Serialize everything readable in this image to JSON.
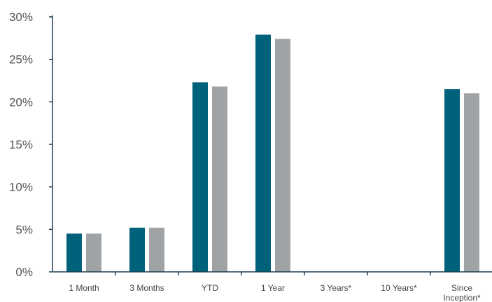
{
  "chart_data": {
    "type": "bar",
    "categories": [
      "1 Month",
      "3 Months",
      "YTD",
      "1 Year",
      "3 Years*",
      "10 Years*",
      "Since Inception*"
    ],
    "series": [
      {
        "values": [
          4.5,
          5.2,
          22.3,
          27.9,
          null,
          null,
          21.5
        ],
        "color": "#00627a"
      },
      {
        "values": [
          4.5,
          5.2,
          21.8,
          27.4,
          null,
          null,
          21.0
        ],
        "color": "#a0a3a5"
      }
    ],
    "ylim": [
      0,
      30
    ],
    "yticks": [
      {
        "value": 0,
        "label": "0%"
      },
      {
        "value": 5,
        "label": "5%"
      },
      {
        "value": 10,
        "label": "10%"
      },
      {
        "value": 15,
        "label": "15%"
      },
      {
        "value": 20,
        "label": "20%"
      },
      {
        "value": 25,
        "label": "25%"
      },
      {
        "value": 30,
        "label": "30%"
      }
    ],
    "grid": false,
    "axis_color": "#1f3f52"
  }
}
